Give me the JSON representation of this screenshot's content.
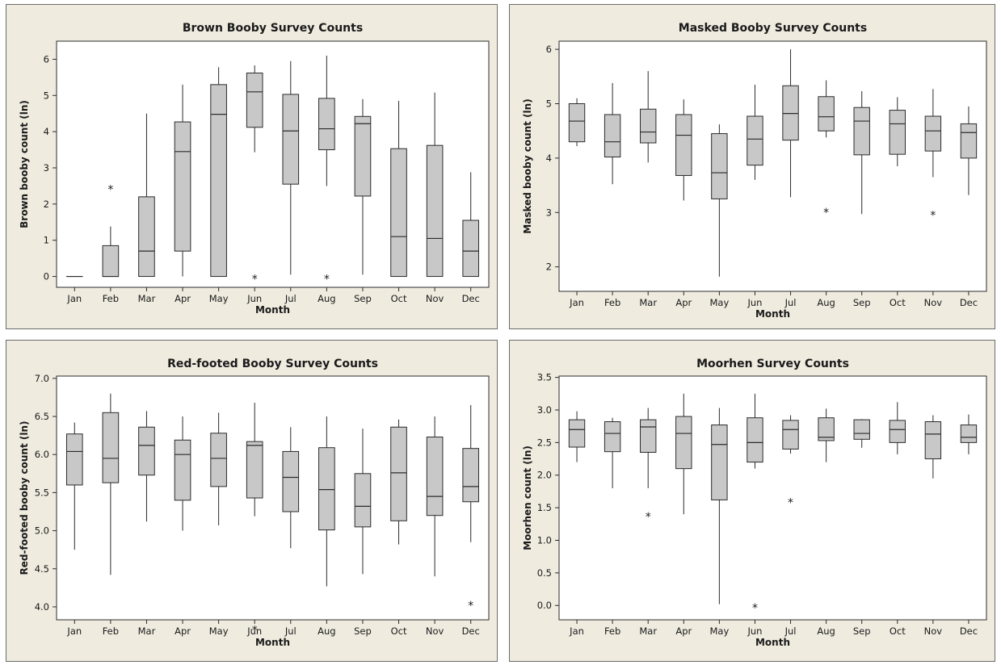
{
  "chart_data": [
    {
      "type": "boxplot",
      "title": "Brown Booby Survey Counts",
      "xlabel": "Month",
      "ylabel": "Brown booby count (ln)",
      "ylim": [
        -0.3,
        6.5
      ],
      "yticks": [
        "0",
        "1",
        "2",
        "3",
        "4",
        "5",
        "6"
      ],
      "categories": [
        "Jan",
        "Feb",
        "Mar",
        "Apr",
        "May",
        "Jun",
        "Jul",
        "Aug",
        "Sep",
        "Oct",
        "Nov",
        "Dec"
      ],
      "boxes": [
        {
          "min": 0,
          "q1": 0,
          "median": 0,
          "q3": 0,
          "max": 0
        },
        {
          "min": 0,
          "q1": 0,
          "median": 0,
          "q3": 0.85,
          "max": 1.38
        },
        {
          "min": 0,
          "q1": 0,
          "median": 0.7,
          "q3": 2.2,
          "max": 4.5
        },
        {
          "min": 0,
          "q1": 0.7,
          "median": 3.45,
          "q3": 4.27,
          "max": 5.3
        },
        {
          "min": 0,
          "q1": 0,
          "median": 4.48,
          "q3": 5.3,
          "max": 5.78
        },
        {
          "min": 3.43,
          "q1": 4.12,
          "median": 5.1,
          "q3": 5.62,
          "max": 5.83
        },
        {
          "min": 0.05,
          "q1": 2.55,
          "median": 4.02,
          "q3": 5.03,
          "max": 5.95
        },
        {
          "min": 2.5,
          "q1": 3.5,
          "median": 4.08,
          "q3": 4.92,
          "max": 6.1
        },
        {
          "min": 0.05,
          "q1": 2.22,
          "median": 4.22,
          "q3": 4.42,
          "max": 4.9
        },
        {
          "min": 0,
          "q1": 0,
          "median": 1.1,
          "q3": 3.53,
          "max": 4.85
        },
        {
          "min": 0,
          "q1": 0,
          "median": 1.05,
          "q3": 3.62,
          "max": 5.08
        },
        {
          "min": 0,
          "q1": 0,
          "median": 0.7,
          "q3": 1.55,
          "max": 2.88
        }
      ],
      "outliers": [
        {
          "month": "Feb",
          "y": 2.48
        },
        {
          "month": "Jun",
          "y": 0
        },
        {
          "month": "Aug",
          "y": 0
        }
      ],
      "grid": false
    },
    {
      "type": "boxplot",
      "title": "Masked Booby Survey Counts",
      "xlabel": "Month",
      "ylabel": "Masked booby count (ln)",
      "ylim": [
        1.55,
        6.15
      ],
      "yticks": [
        "2",
        "3",
        "4",
        "5",
        "6"
      ],
      "categories": [
        "Jan",
        "Feb",
        "Mar",
        "Apr",
        "May",
        "Jun",
        "Jul",
        "Aug",
        "Sep",
        "Oct",
        "Nov",
        "Dec"
      ],
      "boxes": [
        {
          "min": 4.22,
          "q1": 4.3,
          "median": 4.68,
          "q3": 5.0,
          "max": 5.1
        },
        {
          "min": 3.52,
          "q1": 4.02,
          "median": 4.3,
          "q3": 4.8,
          "max": 5.38
        },
        {
          "min": 3.92,
          "q1": 4.28,
          "median": 4.48,
          "q3": 4.9,
          "max": 5.6
        },
        {
          "min": 3.22,
          "q1": 3.68,
          "median": 4.42,
          "q3": 4.8,
          "max": 5.08
        },
        {
          "min": 1.82,
          "q1": 3.25,
          "median": 3.73,
          "q3": 4.45,
          "max": 4.62
        },
        {
          "min": 3.6,
          "q1": 3.87,
          "median": 4.35,
          "q3": 4.77,
          "max": 5.35
        },
        {
          "min": 3.28,
          "q1": 4.33,
          "median": 4.82,
          "q3": 5.33,
          "max": 6.0
        },
        {
          "min": 4.38,
          "q1": 4.5,
          "median": 4.76,
          "q3": 5.13,
          "max": 5.43
        },
        {
          "min": 2.97,
          "q1": 4.06,
          "median": 4.68,
          "q3": 4.93,
          "max": 5.23
        },
        {
          "min": 3.85,
          "q1": 4.07,
          "median": 4.63,
          "q3": 4.88,
          "max": 5.12
        },
        {
          "min": 3.65,
          "q1": 4.13,
          "median": 4.5,
          "q3": 4.77,
          "max": 5.27
        },
        {
          "min": 3.32,
          "q1": 4.0,
          "median": 4.47,
          "q3": 4.63,
          "max": 4.95
        }
      ],
      "outliers": [
        {
          "month": "Aug",
          "y": 3.05
        },
        {
          "month": "Nov",
          "y": 3.0
        }
      ],
      "grid": false
    },
    {
      "type": "boxplot",
      "title": "Red-footed Booby Survey Counts",
      "xlabel": "Month",
      "ylabel": "Red-footed booby count (ln)",
      "ylim": [
        3.83,
        7.03
      ],
      "yticks": [
        "4.0",
        "4.5",
        "5.0",
        "5.5",
        "6.0",
        "6.5",
        "7.0"
      ],
      "categories": [
        "Jan",
        "Feb",
        "Mar",
        "Apr",
        "May",
        "Jun",
        "Jul",
        "Aug",
        "Sep",
        "Oct",
        "Nov",
        "Dec"
      ],
      "boxes": [
        {
          "min": 4.75,
          "q1": 5.6,
          "median": 6.04,
          "q3": 6.27,
          "max": 6.42
        },
        {
          "min": 4.42,
          "q1": 5.63,
          "median": 5.95,
          "q3": 6.55,
          "max": 6.8
        },
        {
          "min": 5.12,
          "q1": 5.73,
          "median": 6.12,
          "q3": 6.36,
          "max": 6.57
        },
        {
          "min": 5.0,
          "q1": 5.4,
          "median": 6.0,
          "q3": 6.19,
          "max": 6.5
        },
        {
          "min": 5.07,
          "q1": 5.58,
          "median": 5.95,
          "q3": 6.28,
          "max": 6.55
        },
        {
          "min": 5.19,
          "q1": 5.43,
          "median": 6.12,
          "q3": 6.17,
          "max": 6.68
        },
        {
          "min": 4.77,
          "q1": 5.25,
          "median": 5.7,
          "q3": 6.04,
          "max": 6.36
        },
        {
          "min": 4.27,
          "q1": 5.01,
          "median": 5.54,
          "q3": 6.09,
          "max": 6.5
        },
        {
          "min": 4.43,
          "q1": 5.05,
          "median": 5.32,
          "q3": 5.75,
          "max": 6.34
        },
        {
          "min": 4.82,
          "q1": 5.13,
          "median": 5.76,
          "q3": 6.36,
          "max": 6.46
        },
        {
          "min": 4.4,
          "q1": 5.2,
          "median": 5.45,
          "q3": 6.23,
          "max": 6.5
        },
        {
          "min": 4.85,
          "q1": 5.38,
          "median": 5.58,
          "q3": 6.08,
          "max": 6.65
        }
      ],
      "outliers": [
        {
          "month": "Jun",
          "y": 3.73
        },
        {
          "month": "Dec",
          "y": 4.05
        }
      ],
      "grid": false
    },
    {
      "type": "boxplot",
      "title": "Moorhen Survey Counts",
      "xlabel": "Month",
      "ylabel": "Moorhen count (ln)",
      "ylim": [
        -0.22,
        3.52
      ],
      "yticks": [
        "0.0",
        "0.5",
        "1.0",
        "1.5",
        "2.0",
        "2.5",
        "3.0",
        "3.5"
      ],
      "categories": [
        "Jan",
        "Feb",
        "Mar",
        "Apr",
        "May",
        "Jun",
        "Jul",
        "Aug",
        "Sep",
        "Oct",
        "Nov",
        "Dec"
      ],
      "boxes": [
        {
          "min": 2.2,
          "q1": 2.43,
          "median": 2.7,
          "q3": 2.85,
          "max": 2.98
        },
        {
          "min": 1.8,
          "q1": 2.36,
          "median": 2.64,
          "q3": 2.82,
          "max": 2.88
        },
        {
          "min": 1.8,
          "q1": 2.35,
          "median": 2.74,
          "q3": 2.85,
          "max": 3.03
        },
        {
          "min": 1.4,
          "q1": 2.1,
          "median": 2.64,
          "q3": 2.9,
          "max": 3.25
        },
        {
          "min": 0.02,
          "q1": 1.62,
          "median": 2.47,
          "q3": 2.77,
          "max": 3.03
        },
        {
          "min": 2.1,
          "q1": 2.2,
          "median": 2.5,
          "q3": 2.88,
          "max": 3.25
        },
        {
          "min": 2.33,
          "q1": 2.4,
          "median": 2.7,
          "q3": 2.84,
          "max": 2.92
        },
        {
          "min": 2.2,
          "q1": 2.53,
          "median": 2.58,
          "q3": 2.88,
          "max": 3.02
        },
        {
          "min": 2.42,
          "q1": 2.55,
          "median": 2.64,
          "q3": 2.85,
          "max": 2.86
        },
        {
          "min": 2.32,
          "q1": 2.5,
          "median": 2.7,
          "q3": 2.84,
          "max": 3.12
        },
        {
          "min": 1.95,
          "q1": 2.25,
          "median": 2.63,
          "q3": 2.82,
          "max": 2.92
        },
        {
          "min": 2.32,
          "q1": 2.5,
          "median": 2.58,
          "q3": 2.77,
          "max": 2.93
        }
      ],
      "outliers": [
        {
          "month": "Mar",
          "y": 1.4
        },
        {
          "month": "Jun",
          "y": 0.0
        },
        {
          "month": "Jul",
          "y": 1.62
        }
      ],
      "grid": false
    }
  ],
  "colors": {
    "panel_background": "#efebdf",
    "plot_background": "#ffffff",
    "box_fill": "#c8c8c8",
    "line": "#2b2b2b"
  }
}
